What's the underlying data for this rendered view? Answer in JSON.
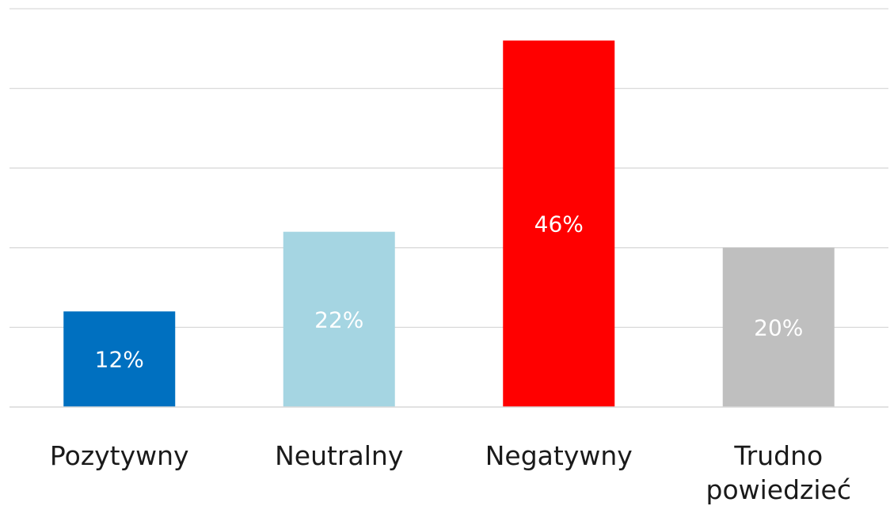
{
  "chart_data": {
    "type": "bar",
    "title": "",
    "xlabel": "",
    "ylabel": "",
    "ylim": [
      0,
      50
    ],
    "grid": true,
    "legend": "none",
    "categories": [
      [
        "Pozytywny"
      ],
      [
        "Neutralny"
      ],
      [
        "Negatywny"
      ],
      [
        "Trudno",
        "powiedzieć"
      ]
    ],
    "values": [
      12,
      22,
      46,
      20
    ],
    "data_labels": [
      "12%",
      "22%",
      "46%",
      "20%"
    ],
    "colors": [
      "#0070c0",
      "#a5d5e2",
      "#ff0000",
      "#bfbfbf"
    ]
  }
}
